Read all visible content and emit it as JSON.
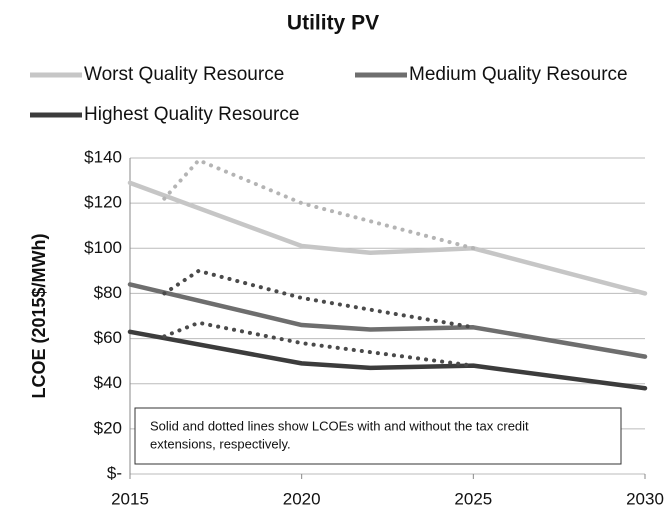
{
  "chart_data": {
    "type": "line",
    "title": "Utility PV",
    "ylabel": "LCOE (2015$/MWh)",
    "annotation": [
      "Solid and dotted lines show LCOEs with and without the tax credit",
      "extensions, respectively."
    ],
    "xlim": [
      2015,
      2030
    ],
    "xticks": [
      2015,
      2020,
      2025,
      2030
    ],
    "ylim": [
      0,
      140
    ],
    "yticks": [
      {
        "value": 0,
        "label": "$-"
      },
      {
        "value": 20,
        "label": "$20"
      },
      {
        "value": 40,
        "label": "$40"
      },
      {
        "value": 60,
        "label": "$60"
      },
      {
        "value": 80,
        "label": "$80"
      },
      {
        "value": 100,
        "label": "$100"
      },
      {
        "value": 120,
        "label": "$120"
      },
      {
        "value": 140,
        "label": "$140"
      }
    ],
    "grid": true,
    "series": [
      {
        "name": "Worst Quality Resource",
        "color": "#c6c6c6",
        "x": [
          2015,
          2020,
          2022,
          2025,
          2030
        ],
        "values": [
          129,
          101,
          98,
          100,
          80
        ]
      },
      {
        "name": "Medium Quality Resource",
        "color": "#6e6e6e",
        "x": [
          2015,
          2020,
          2022,
          2025,
          2030
        ],
        "values": [
          84,
          66,
          64,
          65,
          52
        ]
      },
      {
        "name": "Highest Quality Resource",
        "color": "#3c3c3c",
        "x": [
          2015,
          2020,
          2022,
          2025,
          2030
        ],
        "values": [
          63,
          49,
          47,
          48,
          38
        ]
      },
      {
        "color": "#b4b4b4",
        "dotted": true,
        "x": [
          2016,
          2017,
          2020,
          2025
        ],
        "values": [
          122,
          139,
          120,
          100
        ]
      },
      {
        "color": "#4a4a4a",
        "dotted": true,
        "x": [
          2016,
          2017,
          2020,
          2025
        ],
        "values": [
          80,
          90,
          78,
          65
        ]
      },
      {
        "color": "#4a4a4a",
        "dotted": true,
        "x": [
          2016,
          2017,
          2020,
          2025
        ],
        "values": [
          61,
          67,
          58,
          48
        ]
      }
    ]
  }
}
